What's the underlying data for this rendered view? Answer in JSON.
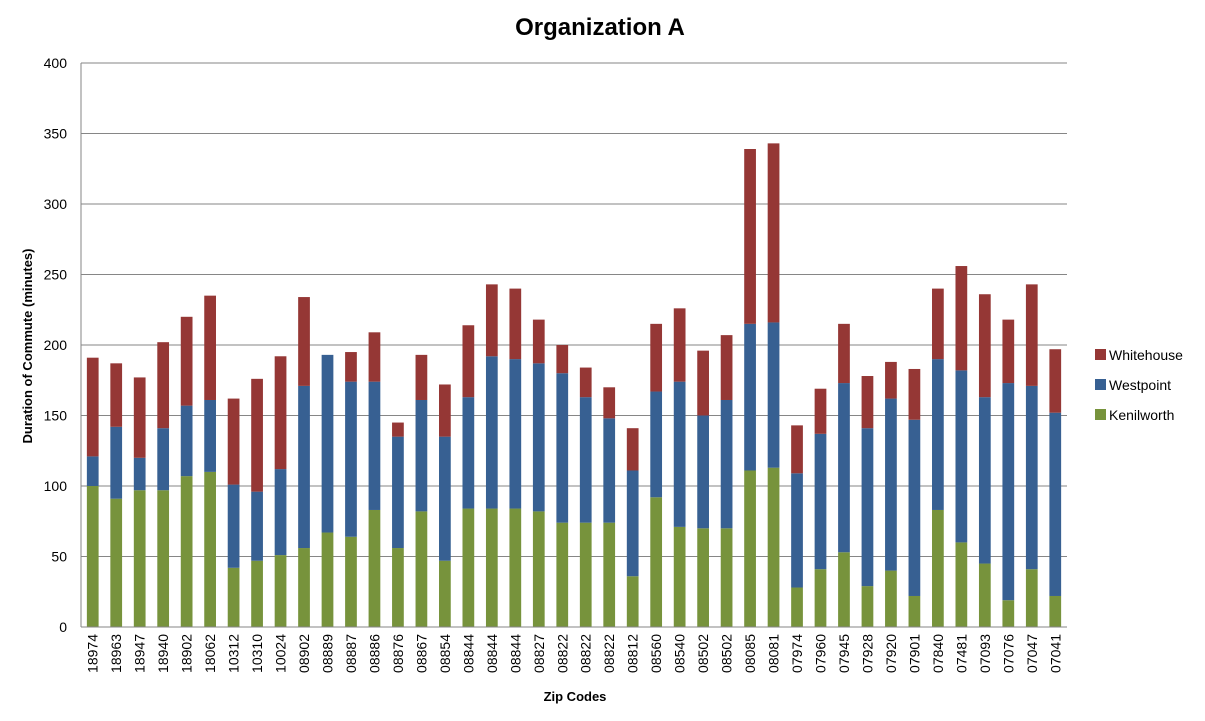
{
  "chart_data": {
    "type": "bar",
    "stacked": true,
    "title": "Organization A",
    "xlabel": "Zip Codes",
    "ylabel": "Duration of Commute (minutes)",
    "ylim": [
      0,
      400
    ],
    "yticks": [
      0,
      50,
      100,
      150,
      200,
      250,
      300,
      350,
      400
    ],
    "grid": true,
    "legend_position": "right",
    "categories": [
      "18974",
      "18963",
      "18947",
      "18940",
      "18902",
      "18062",
      "10312",
      "10310",
      "10024",
      "08902",
      "08889",
      "08887",
      "08886",
      "08876",
      "08867",
      "08854",
      "08844",
      "08844",
      "08844",
      "08827",
      "08822",
      "08822",
      "08822",
      "08812",
      "08560",
      "08540",
      "08502",
      "08502",
      "08085",
      "08081",
      "07974",
      "07960",
      "07945",
      "07928",
      "07920",
      "07901",
      "07840",
      "07481",
      "07093",
      "07076",
      "07047",
      "07041"
    ],
    "series": [
      {
        "name": "Kenilworth",
        "color": "#77933C",
        "values": [
          100,
          91,
          97,
          97,
          107,
          110,
          42,
          47,
          51,
          56,
          67,
          64,
          83,
          56,
          82,
          47,
          84,
          84,
          84,
          82,
          74,
          74,
          74,
          36,
          92,
          71,
          70,
          70,
          111,
          113,
          28,
          41,
          53,
          29,
          40,
          22,
          83,
          60,
          45,
          19,
          41,
          22
        ]
      },
      {
        "name": "Westpoint",
        "color": "#376092",
        "values": [
          21,
          51,
          23,
          44,
          50,
          51,
          59,
          49,
          61,
          115,
          126,
          110,
          91,
          79,
          79,
          88,
          79,
          108,
          106,
          105,
          106,
          89,
          74,
          75,
          75,
          103,
          80,
          91,
          104,
          103,
          81,
          96,
          120,
          112,
          122,
          125,
          107,
          122,
          118,
          154,
          130,
          130
        ]
      },
      {
        "name": "Whitehouse",
        "color": "#953735",
        "values": [
          70,
          45,
          57,
          61,
          63,
          74,
          61,
          80,
          80,
          63,
          0,
          21,
          35,
          10,
          32,
          37,
          51,
          51,
          50,
          31,
          20,
          21,
          22,
          30,
          48,
          52,
          46,
          46,
          124,
          127,
          34,
          32,
          42,
          37,
          26,
          36,
          50,
          74,
          73,
          45,
          72,
          45
        ]
      }
    ],
    "legend_order": [
      "Whitehouse",
      "Westpoint",
      "Kenilworth"
    ]
  }
}
